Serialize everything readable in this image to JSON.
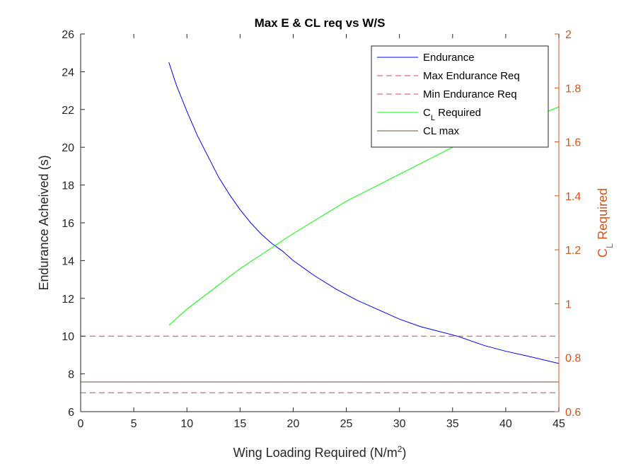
{
  "chart_data": {
    "type": "line",
    "title": "Max E & CL req vs W/S",
    "xlabel": {
      "main": "Wing Loading Required (N/m",
      "sup": "2",
      "close": ")"
    },
    "ylabel_left": "Endurance Acheived (s)",
    "ylabel_right": {
      "main": "C",
      "sub": "L",
      "rest": " Required"
    },
    "xlim": [
      0,
      45
    ],
    "ylim_left": [
      6,
      26
    ],
    "ylim_right": [
      0.6,
      2.0
    ],
    "xticks": [
      "0",
      "5",
      "10",
      "15",
      "20",
      "25",
      "30",
      "35",
      "40",
      "45"
    ],
    "yticks_left": [
      "6",
      "8",
      "10",
      "12",
      "14",
      "16",
      "18",
      "20",
      "22",
      "24",
      "26"
    ],
    "yticks_right": [
      "0.6",
      "0.8",
      "1",
      "1.2",
      "1.4",
      "1.6",
      "1.8",
      "2"
    ],
    "grid": false,
    "legend_position": "top-right",
    "colors": {
      "endurance": "#0000ff",
      "endurance_req": "#e0474c",
      "cl_required": "#00ff00",
      "cl_max": "#7a4a3a",
      "right_axis": "#d95319"
    },
    "series": [
      {
        "name": "Endurance",
        "axis": "left",
        "style": "solid",
        "x": [
          8.3,
          9,
          10,
          11,
          12,
          13,
          14,
          15,
          16,
          17,
          18,
          19,
          20,
          22,
          24,
          26,
          28,
          30,
          32,
          35.5,
          38,
          40,
          42,
          45
        ],
        "y": [
          24.5,
          23.3,
          21.9,
          20.6,
          19.5,
          18.4,
          17.5,
          16.7,
          16.0,
          15.4,
          14.9,
          14.5,
          14.0,
          13.2,
          12.5,
          11.9,
          11.4,
          10.9,
          10.5,
          9.99,
          9.5,
          9.2,
          8.95,
          8.55
        ]
      },
      {
        "name": "Max Endurance Req",
        "axis": "left",
        "style": "dashed",
        "x": [
          0,
          45
        ],
        "y": [
          10,
          10
        ]
      },
      {
        "name": "Min Endurance Req",
        "axis": "left",
        "style": "dashed",
        "x": [
          0,
          45
        ],
        "y": [
          7,
          7
        ]
      },
      {
        "name": "C_L Required",
        "legend": {
          "main": "C",
          "sub": "L",
          "rest": " Required"
        },
        "axis": "right",
        "style": "solid",
        "x": [
          8.3,
          10,
          15,
          20,
          25,
          30,
          35,
          40,
          45
        ],
        "y": [
          0.92,
          0.98,
          1.13,
          1.26,
          1.38,
          1.48,
          1.58,
          1.65,
          1.73
        ]
      },
      {
        "name": "CL max",
        "axis": "right",
        "style": "solid",
        "x": [
          0,
          45
        ],
        "y": [
          0.71,
          0.71
        ]
      }
    ]
  }
}
